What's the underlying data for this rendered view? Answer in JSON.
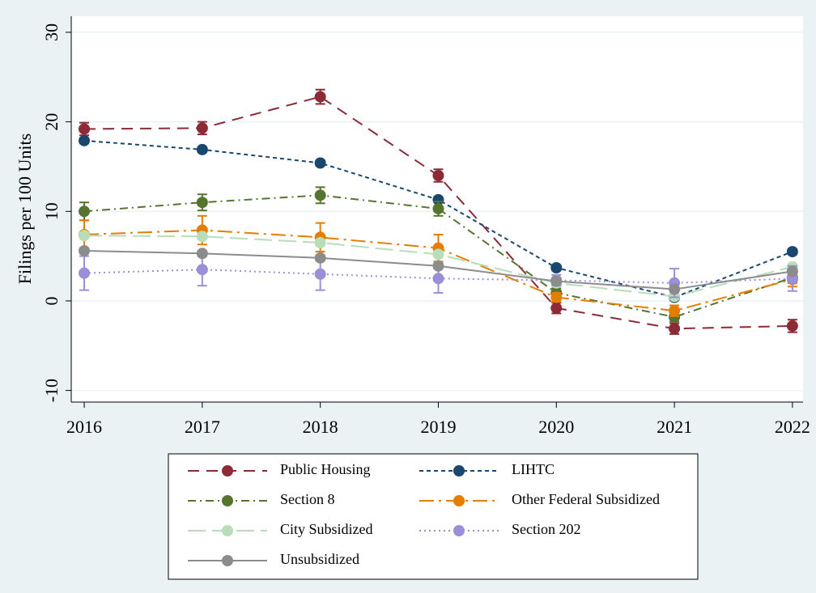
{
  "chart_data": {
    "type": "line",
    "ylabel": "Filings per 100 Units",
    "x": [
      2016,
      2017,
      2018,
      2019,
      2020,
      2021,
      2022
    ],
    "xlim": [
      2015.89,
      2022.09
    ],
    "xticks": [
      2016,
      2017,
      2018,
      2019,
      2020,
      2021,
      2022
    ],
    "ylim": [
      -11.3,
      31.8
    ],
    "yticks": [
      -10,
      0,
      10,
      20,
      30
    ],
    "grid": true,
    "series": [
      {
        "name": "Public Housing",
        "color": "#8c2a36",
        "dash": "14 9",
        "values": [
          19.2,
          19.3,
          22.8,
          14.0,
          -0.8,
          -3.1,
          -2.8
        ],
        "errors": [
          0.7,
          0.7,
          0.8,
          0.7,
          0.6,
          0.6,
          0.7
        ]
      },
      {
        "name": "LIHTC",
        "color": "#1a476f",
        "dash": "5 4",
        "values": [
          17.9,
          16.9,
          15.4,
          11.3,
          3.7,
          0.4,
          5.5
        ],
        "errors": [
          0.3,
          0.3,
          0.3,
          0.3,
          0.3,
          0.3,
          0.3
        ]
      },
      {
        "name": "Section 8",
        "color": "#55752f",
        "dash": "10 5 2 5",
        "values": [
          10.0,
          11.0,
          11.8,
          10.3,
          0.9,
          -1.8,
          2.6
        ],
        "errors": [
          1.0,
          0.9,
          0.9,
          0.8,
          0.5,
          0.5,
          0.6
        ]
      },
      {
        "name": "Other Federal Subsidized",
        "color": "#e37e00",
        "dash": "18 6 3 6",
        "values": [
          7.4,
          7.9,
          7.1,
          5.9,
          0.4,
          -1.1,
          2.4
        ],
        "errors": [
          1.6,
          1.6,
          1.6,
          1.5,
          0.5,
          0.6,
          0.8
        ]
      },
      {
        "name": "City Subsidized",
        "color": "#b8ddb9",
        "dash": "22 8",
        "values": [
          7.3,
          7.2,
          6.5,
          5.2,
          2.0,
          0.5,
          3.8
        ],
        "errors": [
          0.3,
          0.3,
          0.3,
          0.3,
          0.3,
          0.3,
          0.3
        ]
      },
      {
        "name": "Section 202",
        "color": "#9a8fd8",
        "dash": "2 4",
        "values": [
          3.1,
          3.5,
          3.0,
          2.5,
          2.3,
          2.0,
          2.5
        ],
        "errors": [
          1.9,
          1.8,
          1.8,
          1.6,
          0.6,
          1.6,
          1.4
        ]
      },
      {
        "name": "Unsubsidized",
        "color": "#8c8c8c",
        "dash": "",
        "values": [
          5.6,
          5.3,
          4.8,
          3.9,
          2.2,
          1.3,
          3.3
        ],
        "errors": [
          0.3,
          0.3,
          0.3,
          0.3,
          0.3,
          0.3,
          0.3
        ]
      }
    ]
  }
}
